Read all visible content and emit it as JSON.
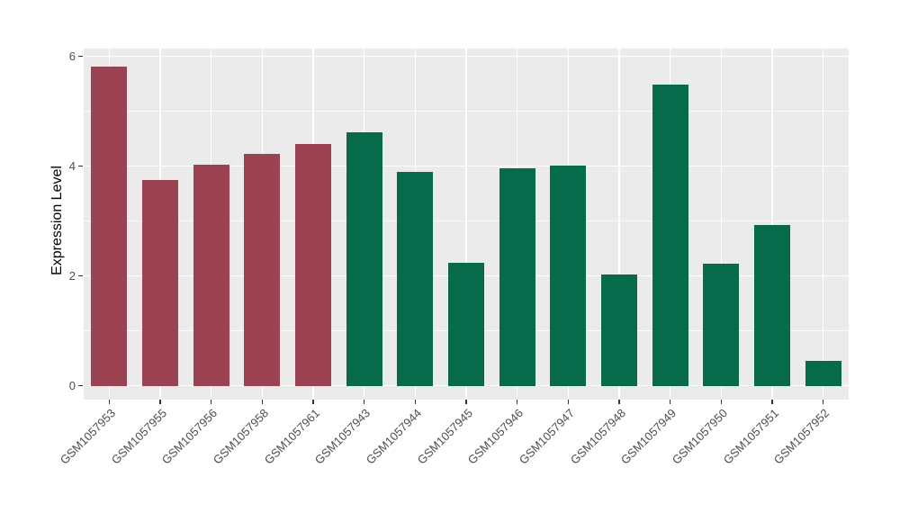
{
  "chart_data": {
    "type": "bar",
    "title": "",
    "xlabel": "",
    "ylabel": "Expression Level",
    "categories": [
      "GSM1057953",
      "GSM1057955",
      "GSM1057956",
      "GSM1057958",
      "GSM1057961",
      "GSM1057943",
      "GSM1057944",
      "GSM1057945",
      "GSM1057946",
      "GSM1057947",
      "GSM1057948",
      "GSM1057949",
      "GSM1057950",
      "GSM1057951",
      "GSM1057952"
    ],
    "values": [
      5.82,
      3.74,
      4.02,
      4.22,
      4.4,
      4.61,
      3.89,
      2.24,
      3.96,
      4.01,
      2.03,
      5.48,
      2.22,
      2.93,
      0.46
    ],
    "bar_colors": [
      "#9B4353",
      "#9B4353",
      "#9B4353",
      "#9B4353",
      "#9B4353",
      "#066A4B",
      "#066A4B",
      "#066A4B",
      "#066A4B",
      "#066A4B",
      "#066A4B",
      "#066A4B",
      "#066A4B",
      "#066A4B",
      "#066A4B"
    ],
    "groups": [
      {
        "name": "maroon-group",
        "color": "#9B4353",
        "count": 5
      },
      {
        "name": "green-group",
        "color": "#066A4B",
        "count": 10
      }
    ],
    "ylim": [
      0,
      6
    ],
    "ytick_labels": [
      "0",
      "2",
      "4",
      "6"
    ],
    "ytick_values": [
      0,
      2,
      4,
      6
    ],
    "minor_ytick_values": [
      1,
      3,
      5
    ],
    "grid": "on",
    "legend_position": "none",
    "panel_bg": "#EBEBEB",
    "grid_color": "#FFFFFF",
    "axis_text_color": "#4D4D4D",
    "tick_mark_color": "#333333"
  }
}
